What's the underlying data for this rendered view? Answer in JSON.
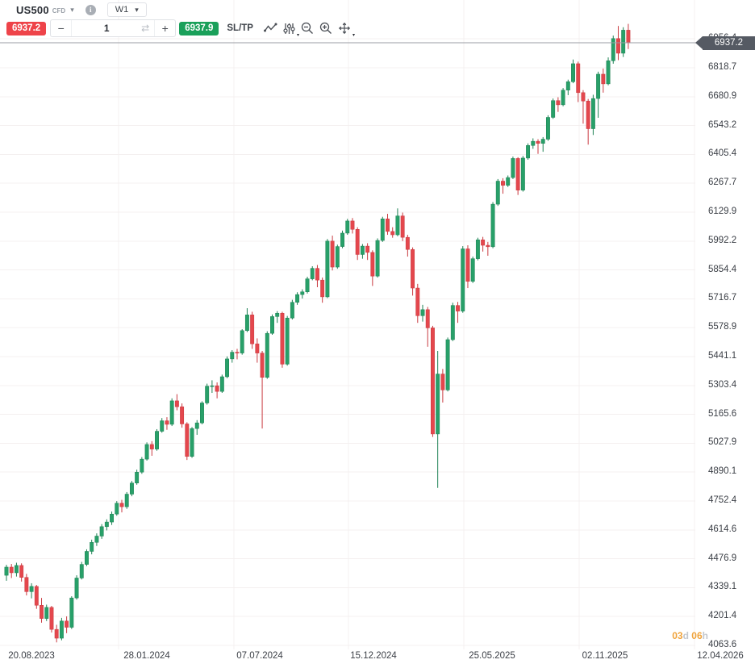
{
  "header": {
    "symbol": "US500",
    "instrument_type": "CFD",
    "timeframe": "W1"
  },
  "toolbar": {
    "sell_price": "6937.2",
    "buy_price": "6937.9",
    "volume": "1",
    "sltp_label": "SL/TP",
    "icons": [
      "line-style-icon",
      "indicators-icon",
      "zoom-out-icon",
      "zoom-in-icon",
      "pan-icon"
    ]
  },
  "price_axis": {
    "current_price_label": "6937.2",
    "ticks": [
      "6956.4",
      "6818.7",
      "6680.9",
      "6543.2",
      "6405.4",
      "6267.7",
      "6129.9",
      "5992.2",
      "5854.4",
      "5716.7",
      "5578.9",
      "5441.1",
      "5303.4",
      "5165.6",
      "5027.9",
      "4890.1",
      "4752.4",
      "4614.6",
      "4476.9",
      "4339.1",
      "4201.4",
      "4063.6"
    ]
  },
  "time_axis": {
    "labels": [
      "20.08.2023",
      "28.01.2024",
      "07.07.2024",
      "15.12.2024",
      "25.05.2025",
      "02.11.2025",
      "12.04.2026"
    ]
  },
  "countdown": {
    "days_value": "03",
    "days_unit": "d",
    "hours_value": "06",
    "hours_unit": "h"
  },
  "chart_data": {
    "type": "candlestick",
    "symbol": "US500",
    "timeframe": "W1",
    "current_price": 6937.2,
    "y_ticks": [
      6956.4,
      6818.7,
      6680.9,
      6543.2,
      6405.4,
      6267.7,
      6129.9,
      5992.2,
      5854.4,
      5716.7,
      5578.9,
      5441.1,
      5303.4,
      5165.6,
      5027.9,
      4890.1,
      4752.4,
      4614.6,
      4476.9,
      4339.1,
      4201.4,
      4063.6
    ],
    "x_labels": [
      "20.08.2023",
      "28.01.2024",
      "07.07.2024",
      "15.12.2024",
      "25.05.2025",
      "02.11.2025",
      "12.04.2026"
    ],
    "up_color": "#28a069",
    "up_border": "#1e8254",
    "down_color": "#e4474d",
    "down_border": "#c93a40",
    "grid_color": "#f4f0f0",
    "price_line_color": "#9b9ea5",
    "candles": [
      [
        4398,
        4448,
        4372,
        4437
      ],
      [
        4437,
        4452,
        4385,
        4410
      ],
      [
        4410,
        4458,
        4392,
        4445
      ],
      [
        4445,
        4455,
        4368,
        4388
      ],
      [
        4388,
        4405,
        4302,
        4320
      ],
      [
        4320,
        4360,
        4288,
        4345
      ],
      [
        4345,
        4352,
        4238,
        4255
      ],
      [
        4255,
        4290,
        4172,
        4192
      ],
      [
        4192,
        4258,
        4180,
        4245
      ],
      [
        4245,
        4252,
        4125,
        4140
      ],
      [
        4140,
        4162,
        4078,
        4098
      ],
      [
        4098,
        4195,
        4088,
        4180
      ],
      [
        4180,
        4202,
        4122,
        4150
      ],
      [
        4150,
        4298,
        4142,
        4290
      ],
      [
        4290,
        4398,
        4282,
        4385
      ],
      [
        4385,
        4462,
        4378,
        4450
      ],
      [
        4450,
        4522,
        4442,
        4512
      ],
      [
        4512,
        4568,
        4498,
        4555
      ],
      [
        4555,
        4598,
        4538,
        4585
      ],
      [
        4585,
        4642,
        4572,
        4630
      ],
      [
        4630,
        4665,
        4612,
        4652
      ],
      [
        4652,
        4702,
        4638,
        4690
      ],
      [
        4690,
        4752,
        4682,
        4742
      ],
      [
        4742,
        4758,
        4698,
        4725
      ],
      [
        4725,
        4795,
        4715,
        4785
      ],
      [
        4785,
        4848,
        4775,
        4838
      ],
      [
        4838,
        4902,
        4830,
        4890
      ],
      [
        4890,
        4962,
        4882,
        4952
      ],
      [
        4952,
        5032,
        4945,
        5022
      ],
      [
        5022,
        5038,
        4968,
        5000
      ],
      [
        5000,
        5095,
        4992,
        5085
      ],
      [
        5085,
        5148,
        5078,
        5135
      ],
      [
        5135,
        5152,
        5092,
        5118
      ],
      [
        5118,
        5242,
        5110,
        5230
      ],
      [
        5230,
        5262,
        5185,
        5202
      ],
      [
        5202,
        5218,
        5102,
        5120
      ],
      [
        5120,
        5128,
        4948,
        4965
      ],
      [
        4965,
        5105,
        4958,
        5098
      ],
      [
        5098,
        5138,
        5068,
        5125
      ],
      [
        5125,
        5228,
        5118,
        5220
      ],
      [
        5220,
        5312,
        5212,
        5300
      ],
      [
        5300,
        5328,
        5268,
        5302
      ],
      [
        5302,
        5318,
        5242,
        5275
      ],
      [
        5275,
        5355,
        5268,
        5345
      ],
      [
        5345,
        5442,
        5338,
        5430
      ],
      [
        5430,
        5472,
        5412,
        5462
      ],
      [
        5462,
        5478,
        5428,
        5458
      ],
      [
        5458,
        5572,
        5450,
        5565
      ],
      [
        5565,
        5672,
        5558,
        5640
      ],
      [
        5640,
        5655,
        5478,
        5502
      ],
      [
        5502,
        5528,
        5412,
        5458
      ],
      [
        5458,
        5468,
        5098,
        5342
      ],
      [
        5342,
        5562,
        5335,
        5552
      ],
      [
        5552,
        5642,
        5545,
        5632
      ],
      [
        5632,
        5658,
        5602,
        5648
      ],
      [
        5648,
        5655,
        5388,
        5405
      ],
      [
        5405,
        5635,
        5398,
        5625
      ],
      [
        5625,
        5712,
        5618,
        5700
      ],
      [
        5700,
        5748,
        5688,
        5737
      ],
      [
        5737,
        5762,
        5718,
        5750
      ],
      [
        5750,
        5822,
        5742,
        5812
      ],
      [
        5812,
        5872,
        5805,
        5862
      ],
      [
        5862,
        5878,
        5772,
        5806
      ],
      [
        5806,
        5818,
        5698,
        5726
      ],
      [
        5726,
        6002,
        5720,
        5992
      ],
      [
        5992,
        6018,
        5852,
        5868
      ],
      [
        5868,
        5975,
        5860,
        5966
      ],
      [
        5966,
        6042,
        5958,
        6030
      ],
      [
        6030,
        6098,
        6022,
        6088
      ],
      [
        6088,
        6102,
        6028,
        6048
      ],
      [
        6048,
        6058,
        5902,
        5928
      ],
      [
        5928,
        5978,
        5908,
        5968
      ],
      [
        5968,
        5982,
        5902,
        5938
      ],
      [
        5938,
        5948,
        5778,
        5825
      ],
      [
        5825,
        6005,
        5818,
        5995
      ],
      [
        5995,
        6108,
        5988,
        6098
      ],
      [
        6098,
        6122,
        6022,
        6038
      ],
      [
        6038,
        6058,
        6008,
        6022
      ],
      [
        6022,
        6148,
        6015,
        6112
      ],
      [
        6112,
        6128,
        5992,
        6010
      ],
      [
        6010,
        6022,
        5918,
        5952
      ],
      [
        5952,
        5962,
        5732,
        5768
      ],
      [
        5768,
        5788,
        5602,
        5636
      ],
      [
        5636,
        5688,
        5608,
        5665
      ],
      [
        5665,
        5678,
        5488,
        5578
      ],
      [
        5578,
        5588,
        5058,
        5072
      ],
      [
        5072,
        5468,
        4815,
        5358
      ],
      [
        5358,
        5382,
        5222,
        5282
      ],
      [
        5282,
        5532,
        5275,
        5522
      ],
      [
        5522,
        5698,
        5515,
        5685
      ],
      [
        5685,
        5702,
        5602,
        5658
      ],
      [
        5658,
        5968,
        5650,
        5955
      ],
      [
        5955,
        5972,
        5768,
        5800
      ],
      [
        5800,
        5918,
        5792,
        5908
      ],
      [
        5908,
        6008,
        5900,
        5998
      ],
      [
        5998,
        6012,
        5942,
        5972
      ],
      [
        5972,
        5988,
        5922,
        5965
      ],
      [
        5965,
        6178,
        5958,
        6168
      ],
      [
        6168,
        6288,
        6160,
        6278
      ],
      [
        6278,
        6292,
        6218,
        6258
      ],
      [
        6258,
        6305,
        6250,
        6295
      ],
      [
        6295,
        6395,
        6288,
        6386
      ],
      [
        6386,
        6392,
        6212,
        6235
      ],
      [
        6235,
        6398,
        6228,
        6388
      ],
      [
        6388,
        6458,
        6380,
        6448
      ],
      [
        6448,
        6482,
        6432,
        6468
      ],
      [
        6468,
        6478,
        6408,
        6458
      ],
      [
        6458,
        6488,
        6418,
        6478
      ],
      [
        6478,
        6592,
        6470,
        6582
      ],
      [
        6582,
        6672,
        6575,
        6662
      ],
      [
        6662,
        6678,
        6608,
        6642
      ],
      [
        6642,
        6722,
        6635,
        6712
      ],
      [
        6712,
        6762,
        6688,
        6752
      ],
      [
        6752,
        6858,
        6745,
        6838
      ],
      [
        6838,
        6848,
        6655,
        6700
      ],
      [
        6700,
        6712,
        6552,
        6660
      ],
      [
        6660,
        6670,
        6452,
        6528
      ],
      [
        6528,
        6690,
        6498,
        6672
      ],
      [
        6672,
        6800,
        6580,
        6788
      ],
      [
        6788,
        6815,
        6700,
        6742
      ],
      [
        6742,
        6868,
        6735,
        6852
      ],
      [
        6852,
        6972,
        6838,
        6958
      ],
      [
        6958,
        7018,
        6855,
        6888
      ],
      [
        6888,
        7012,
        6870,
        6998
      ],
      [
        6998,
        7028,
        6908,
        6937.2
      ]
    ]
  }
}
